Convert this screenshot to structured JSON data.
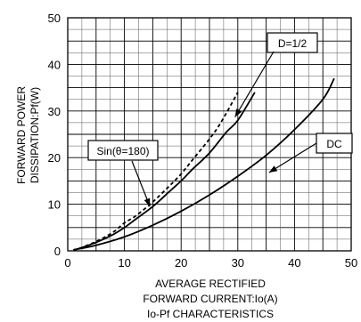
{
  "chart_data": {
    "type": "line",
    "caption": "Io-Pf CHARACTERISTICS",
    "xlabel": [
      "AVERAGE RECTIFIED",
      "FORWARD CURRENT:Io(A)"
    ],
    "ylabel": [
      "FORWARD POWER",
      "DISSIPATION:Pf(W)"
    ],
    "xlim": [
      0,
      50
    ],
    "ylim": [
      0,
      50
    ],
    "x_ticks": [
      0,
      10,
      20,
      30,
      40,
      50
    ],
    "y_ticks": [
      0,
      10,
      20,
      30,
      40,
      50
    ],
    "x_tick_labels": [
      "0",
      "10",
      "20",
      "30",
      "40",
      "50"
    ],
    "y_tick_labels": [
      "0",
      "10",
      "20",
      "30",
      "40",
      "50"
    ],
    "grid": true,
    "series": [
      {
        "name": "Sin(θ=180)",
        "style": "dashed",
        "x": [
          1,
          2,
          5,
          8,
          10,
          12,
          15,
          18,
          20,
          22,
          25,
          27,
          30
        ],
        "y": [
          0.2,
          0.5,
          2,
          4,
          6,
          7.5,
          10.5,
          14,
          16.5,
          19.5,
          24,
          27.5,
          34
        ]
      },
      {
        "name": "D=1/2",
        "style": "solid",
        "x": [
          1,
          2,
          5,
          8,
          10,
          12,
          15,
          18,
          20,
          22,
          25,
          28,
          30,
          33
        ],
        "y": [
          0.2,
          0.5,
          1.8,
          3.5,
          5,
          6.8,
          9.5,
          12.8,
          15,
          17.5,
          21,
          25.5,
          28,
          34
        ]
      },
      {
        "name": "DC",
        "style": "solid",
        "x": [
          1,
          5,
          10,
          15,
          20,
          25,
          30,
          35,
          40,
          45,
          47
        ],
        "y": [
          0.2,
          1.2,
          3,
          5.5,
          8.5,
          12,
          16,
          20.5,
          26,
          32.5,
          37
        ]
      }
    ],
    "annotations": [
      {
        "label": "Sin(θ=180)",
        "series": 0
      },
      {
        "label": "D=1/2",
        "series": 1
      },
      {
        "label": "DC",
        "series": 2
      }
    ]
  }
}
